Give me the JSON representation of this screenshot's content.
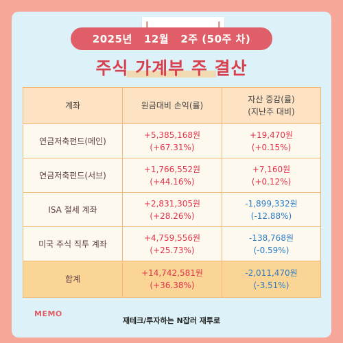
{
  "header": {
    "period": "2025년   12월   2주 (50주 차)",
    "title": "주식 가계부 주 결산"
  },
  "table": {
    "columns": [
      {
        "line1": "계좌",
        "line2": ""
      },
      {
        "line1": "원금대비 손익(률)",
        "line2": ""
      },
      {
        "line1": "자산 증감(률)",
        "line2": "(지난주 대비)"
      }
    ],
    "rows": [
      {
        "account": "연금저축펀드(메인)",
        "pl_amount": "+5,385,168원",
        "pl_rate": "(+67.31%)",
        "chg_amount": "+19,470원",
        "chg_rate": "(+0.15%)"
      },
      {
        "account": "연금저축펀드(서브)",
        "pl_amount": "+1,766,552원",
        "pl_rate": "(+44.16%)",
        "chg_amount": "+7,160원",
        "chg_rate": "(+0.12%)"
      },
      {
        "account": "ISA 절세 계좌",
        "pl_amount": "+2,831,305원",
        "pl_rate": "(+28.26%)",
        "chg_amount": "-1,899,332원",
        "chg_rate": "(-12.88%)"
      },
      {
        "account": "미국 주식 직투 계좌",
        "pl_amount": "+4,759,556원",
        "pl_rate": "(+25.73%)",
        "chg_amount": "-138,768원",
        "chg_rate": "(-0.59%)"
      }
    ],
    "total": {
      "account": "합계",
      "pl_amount": "+14,742,581원",
      "pl_rate": "(+36.38%)",
      "chg_amount": "-2,011,470원",
      "chg_rate": "(-3.51%)"
    }
  },
  "footer": {
    "memo_label": "MEMO",
    "credit": "재테크/투자하는 N잡러 재투로"
  },
  "colors": {
    "background": "#f7a79a",
    "card": "#dcf1f8",
    "accent": "#df5e68",
    "positive": "#e0334a",
    "negative": "#2a7bc4",
    "header_cell": "#fde3c4",
    "total_row": "#fbd595"
  }
}
